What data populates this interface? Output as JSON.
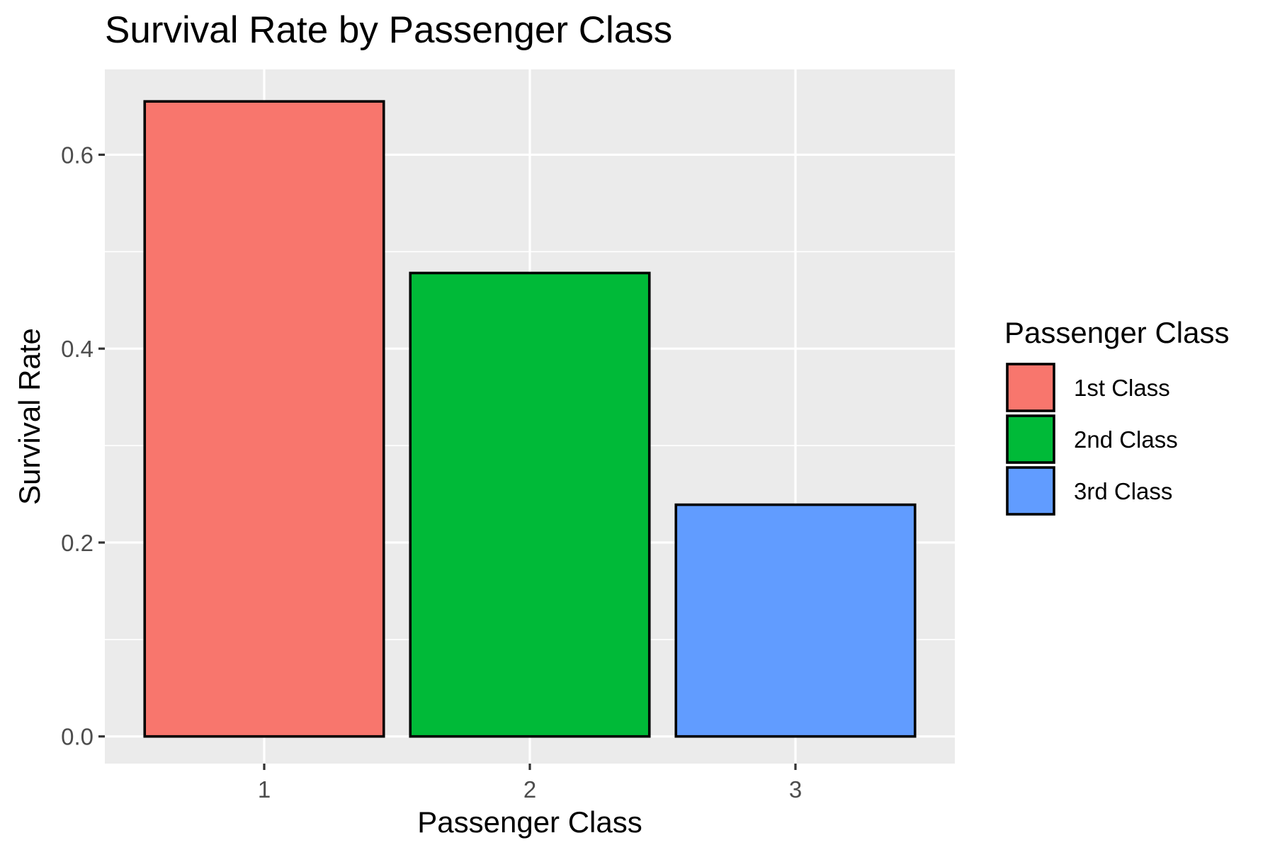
{
  "chart_data": {
    "type": "bar",
    "title": "Survival Rate by Passenger Class",
    "xlabel": "Passenger Class",
    "ylabel": "Survival Rate",
    "categories": [
      "1",
      "2",
      "3"
    ],
    "values": [
      0.655,
      0.478,
      0.239
    ],
    "ylim": [
      -0.028,
      0.688
    ],
    "yticks": [
      0.0,
      0.2,
      0.4,
      0.6
    ],
    "ytick_labels": [
      "0.0",
      "0.2",
      "0.4",
      "0.6"
    ],
    "minor_gridlines": [
      0.1,
      0.3,
      0.5
    ],
    "grid": true,
    "legend": {
      "title": "Passenger Class",
      "position": "right",
      "items": [
        "1st Class",
        "2nd Class",
        "3rd Class"
      ]
    },
    "colors": [
      "#F8766D",
      "#00BA38",
      "#619CFF"
    ],
    "panel_background": "#EBEBEB",
    "bar_outline": "#000000"
  }
}
